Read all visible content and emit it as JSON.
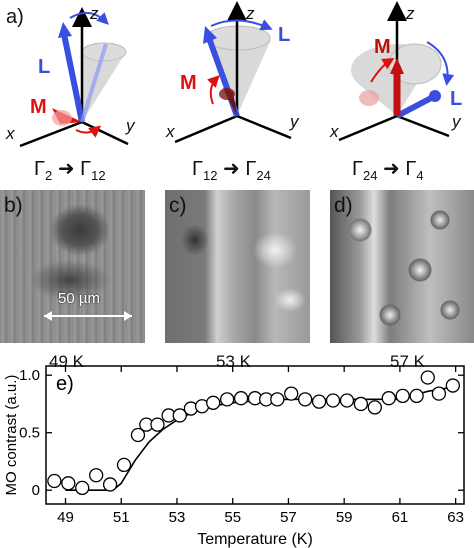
{
  "figure": {
    "panel_a": {
      "label": "a)",
      "axes": {
        "x": "x",
        "y": "y",
        "z": "z"
      },
      "vectors": {
        "L": "L",
        "M": "M"
      },
      "transitions": [
        {
          "from": "Γ",
          "from_sub": "2",
          "to": "Γ",
          "to_sub": "12"
        },
        {
          "from": "Γ",
          "from_sub": "12",
          "to": "Γ",
          "to_sub": "24"
        },
        {
          "from": "Γ",
          "from_sub": "24",
          "to": "Γ",
          "to_sub": "4"
        }
      ],
      "colors": {
        "L": "#3a4fe0",
        "M": "#e01010",
        "axes": "#000000",
        "cone": "#c8c8c8"
      }
    },
    "micrographs": [
      {
        "label": "b)",
        "temperature": "49 K",
        "scale_bar": "50 µm"
      },
      {
        "label": "c)",
        "temperature": "53 K"
      },
      {
        "label": "d)",
        "temperature": "57 K"
      }
    ],
    "panel_e": {
      "label": "e)"
    }
  },
  "chart_data": {
    "type": "scatter",
    "xlabel": "Temperature (K)",
    "ylabel": "MO contrast (a.u.)",
    "xlim": [
      48.3,
      63.3
    ],
    "ylim": [
      -0.12,
      1.08
    ],
    "xticks": [
      49,
      51,
      53,
      55,
      57,
      59,
      61,
      63
    ],
    "yticks": [
      0,
      0.5,
      1.0
    ],
    "ytick_labels": [
      "0",
      "0.5",
      "1.0"
    ],
    "grid": false,
    "series": [
      {
        "marker": "open-circle",
        "x": [
          48.6,
          49.1,
          49.6,
          50.1,
          50.6,
          51.1,
          51.6,
          51.9,
          52.3,
          52.7,
          53.1,
          53.5,
          53.9,
          54.3,
          54.8,
          55.3,
          55.8,
          56.2,
          56.6,
          57.1,
          57.6,
          58.1,
          58.6,
          59.1,
          59.6,
          60.1,
          60.6,
          61.1,
          61.6,
          62.0,
          62.4,
          62.9
        ],
        "y": [
          0.08,
          0.06,
          0.02,
          0.13,
          0.05,
          0.22,
          0.48,
          0.57,
          0.57,
          0.65,
          0.65,
          0.71,
          0.73,
          0.76,
          0.79,
          0.8,
          0.8,
          0.79,
          0.79,
          0.84,
          0.79,
          0.77,
          0.78,
          0.78,
          0.75,
          0.72,
          0.8,
          0.82,
          0.82,
          0.98,
          0.84,
          0.91
        ]
      },
      {
        "marker": "line",
        "x": [
          49.0,
          50.7,
          51.0,
          51.5,
          52.0,
          52.5,
          53.0,
          53.5,
          54.0,
          54.5,
          55.0,
          55.5,
          56.0,
          57.0,
          58.0,
          59.0,
          60.0,
          61.0,
          62.0,
          63.0
        ],
        "y": [
          0.0,
          0.0,
          0.06,
          0.26,
          0.42,
          0.53,
          0.61,
          0.67,
          0.71,
          0.74,
          0.76,
          0.77,
          0.78,
          0.79,
          0.79,
          0.79,
          0.79,
          0.79,
          0.86,
          0.9
        ]
      }
    ]
  }
}
